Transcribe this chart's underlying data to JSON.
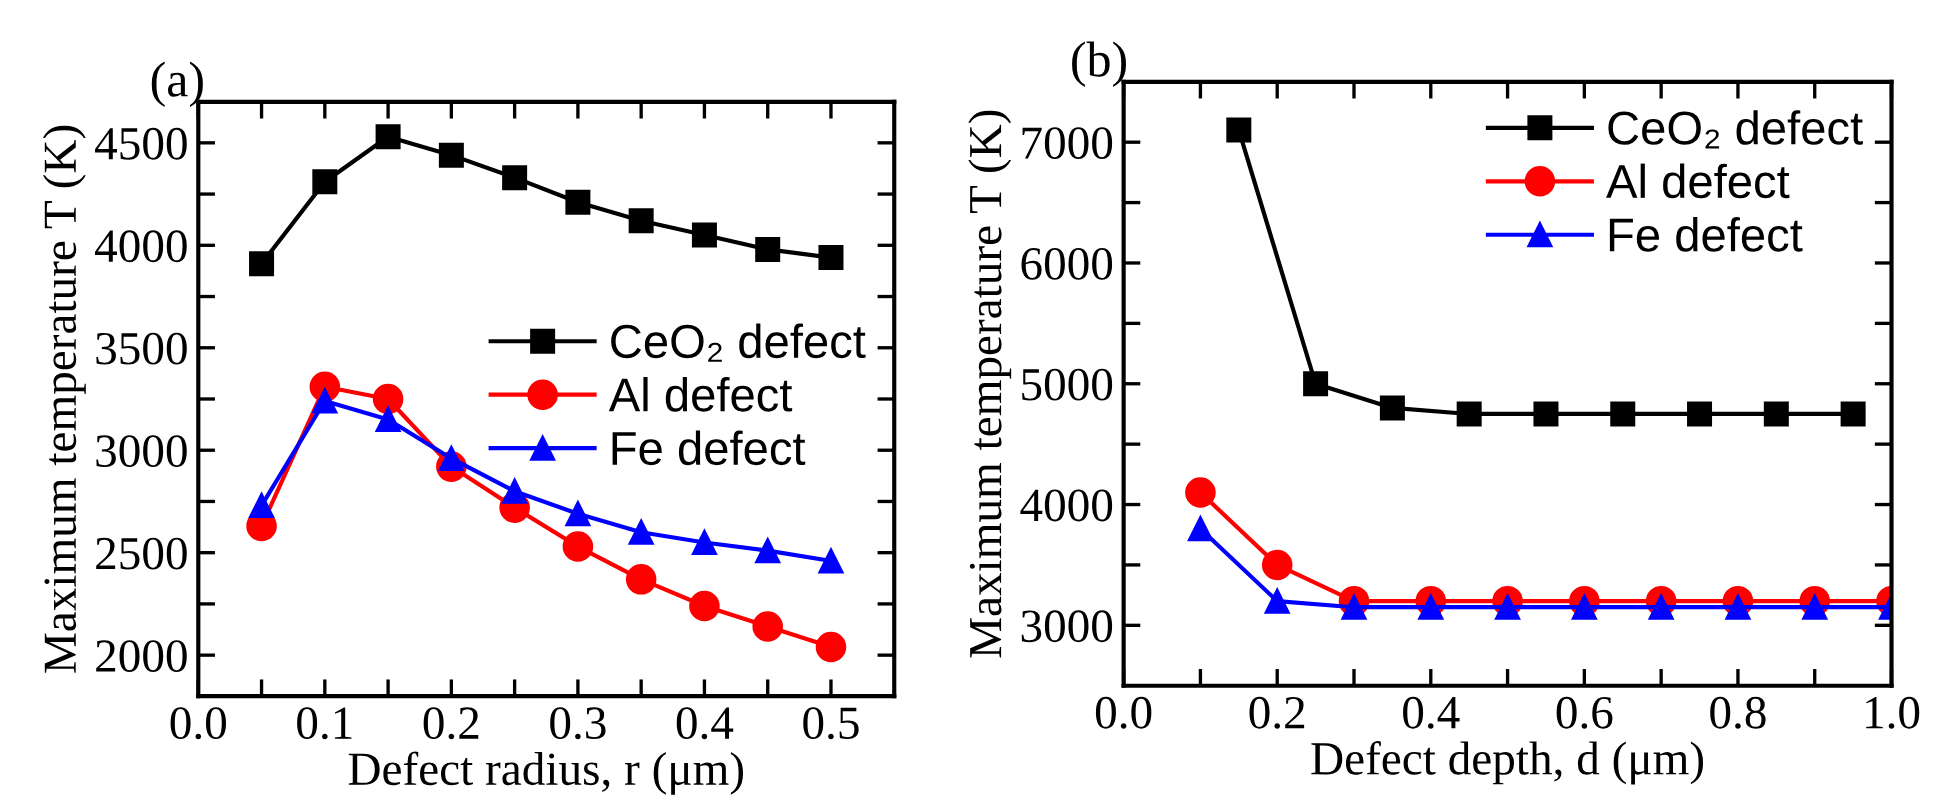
{
  "chart_data": [
    {
      "type": "line",
      "title": "(a)",
      "xlabel": "Defect radius, r (μm)",
      "ylabel": "Maximum temperature T (K)",
      "x": [
        0.05,
        0.1,
        0.15,
        0.2,
        0.25,
        0.3,
        0.35,
        0.4,
        0.45,
        0.5
      ],
      "series": [
        {
          "name": "CeO₂ defect",
          "color": "#000000",
          "marker": "square",
          "values": [
            3910,
            4310,
            4530,
            4440,
            4330,
            4210,
            4120,
            4050,
            3980,
            3940
          ]
        },
        {
          "name": "Al defect",
          "color": "#ff0000",
          "marker": "circle",
          "values": [
            2630,
            3310,
            3250,
            2920,
            2720,
            2530,
            2370,
            2240,
            2140,
            2040
          ]
        },
        {
          "name": "Fe defect",
          "color": "#0000ff",
          "marker": "triangle",
          "values": [
            2730,
            3240,
            3150,
            2960,
            2800,
            2690,
            2600,
            2550,
            2510,
            2460
          ]
        }
      ],
      "xlim": [
        0,
        0.55
      ],
      "xticks": [
        {
          "value": 0,
          "label": "0.0"
        },
        {
          "value": 0.05,
          "label": null
        },
        0.1,
        {
          "value": 0.15,
          "label": null
        },
        0.2,
        {
          "value": 0.25,
          "label": null
        },
        0.3,
        {
          "value": 0.35,
          "label": null
        },
        0.4,
        {
          "value": 0.45,
          "label": null
        },
        0.5
      ],
      "ylim": [
        1800,
        4700
      ],
      "yticks": [
        2000,
        {
          "value": 2250,
          "label": null
        },
        2500,
        {
          "value": 2750,
          "label": null
        },
        3000,
        {
          "value": 3250,
          "label": null
        },
        3500,
        {
          "value": 3750,
          "label": null
        },
        4000,
        {
          "value": 4250,
          "label": null
        },
        4500
      ],
      "legend": "right",
      "grid": false,
      "line_style": "solid"
    },
    {
      "type": "line",
      "title": "(b)",
      "xlabel": "Defect depth, d (μm)",
      "ylabel": "Maximum temperature T (K)",
      "series": [
        {
          "name": "CeO₂ defect",
          "color": "#000000",
          "marker": "square",
          "x": [
            0.15,
            0.25,
            0.35,
            0.45,
            0.55,
            0.65,
            0.75,
            0.85,
            0.95
          ],
          "values": [
            7100,
            5000,
            4800,
            4750,
            4750,
            4750,
            4750,
            4750,
            4750
          ]
        },
        {
          "name": "Al defect",
          "color": "#ff0000",
          "marker": "circle",
          "x": [
            0.1,
            0.2,
            0.3,
            0.4,
            0.5,
            0.6,
            0.7,
            0.8,
            0.9,
            1.0
          ],
          "values": [
            4100,
            3500,
            3200,
            3200,
            3200,
            3200,
            3200,
            3200,
            3200,
            3200
          ]
        },
        {
          "name": "Fe defect",
          "color": "#0000ff",
          "marker": "triangle",
          "x": [
            0.1,
            0.2,
            0.3,
            0.4,
            0.5,
            0.6,
            0.7,
            0.8,
            0.9,
            1.0
          ],
          "values": [
            3800,
            3200,
            3150,
            3150,
            3150,
            3150,
            3150,
            3150,
            3150,
            3150
          ]
        }
      ],
      "xlim": [
        0,
        1.0
      ],
      "xticks": [
        {
          "value": 0,
          "label": "0.0"
        },
        {
          "value": 0.1,
          "label": null
        },
        0.2,
        {
          "value": 0.3,
          "label": null
        },
        0.4,
        {
          "value": 0.5,
          "label": null
        },
        0.6,
        {
          "value": 0.7,
          "label": null
        },
        0.8,
        {
          "value": 0.9,
          "label": null
        },
        {
          "value": 1,
          "label": "1.0"
        }
      ],
      "ylim": [
        2500,
        7500
      ],
      "yticks": [
        3000,
        {
          "value": 3500,
          "label": null
        },
        4000,
        {
          "value": 4500,
          "label": null
        },
        5000,
        {
          "value": 5500,
          "label": null
        },
        6000,
        {
          "value": 6500,
          "label": null
        },
        7000
      ],
      "legend": "top right",
      "grid": false,
      "line_style": "solid"
    }
  ]
}
